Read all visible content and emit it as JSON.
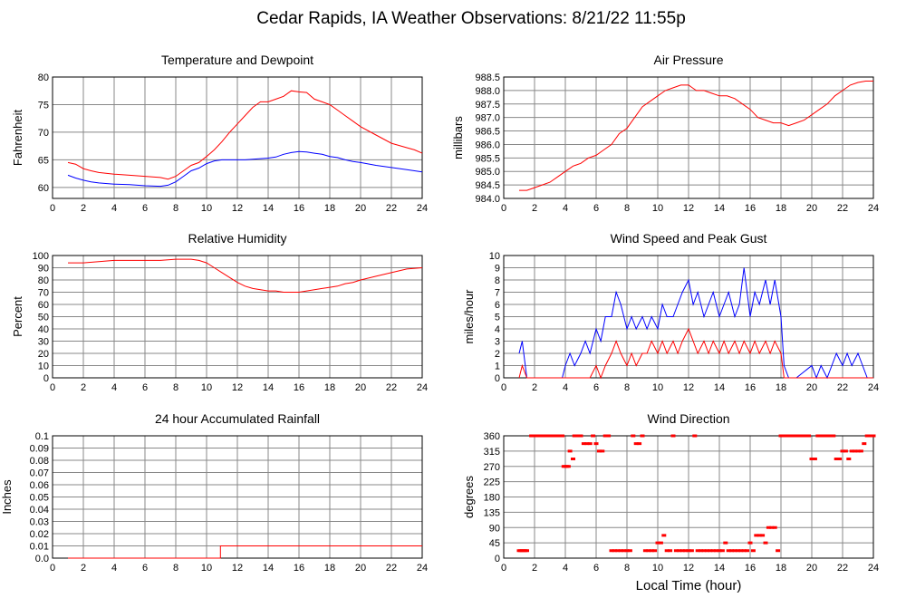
{
  "title": "Cedar Rapids, IA Weather Observations: 8/21/22 11:55p",
  "xlabel": "Local Time (hour)",
  "colors": {
    "series_red": "#ff0000",
    "series_blue": "#0000ff",
    "grid": "#888888"
  },
  "chart_data": [
    {
      "id": "temp",
      "type": "line",
      "title": "Temperature and Dewpoint",
      "ylabel": "Fahrenheit",
      "xlim": [
        0,
        24
      ],
      "ylim": [
        58,
        80
      ],
      "xticks": [
        2,
        4,
        6,
        8,
        10,
        12,
        14,
        16,
        18,
        20,
        22,
        24
      ],
      "yticks": [
        60,
        65,
        70,
        75,
        80
      ],
      "yticklabels": [
        "60",
        "65",
        "70",
        "75",
        "80"
      ],
      "grid": true,
      "series": [
        {
          "color": "#ff0000",
          "x": [
            1,
            1.5,
            2,
            2.5,
            3,
            4,
            5,
            6,
            7,
            7.5,
            8,
            8.5,
            9,
            9.5,
            10,
            10.5,
            11,
            11.5,
            12,
            12.5,
            13,
            13.5,
            14,
            14.5,
            15,
            15.5,
            16,
            16.5,
            17,
            17.5,
            18,
            18.5,
            19,
            19.5,
            20,
            21,
            22,
            23,
            23.5,
            24
          ],
          "y": [
            64.5,
            64.2,
            63.4,
            63,
            62.7,
            62.4,
            62.2,
            62,
            61.8,
            61.5,
            62,
            63,
            64,
            64.5,
            65.6,
            66.8,
            68.3,
            70,
            71.5,
            73,
            74.5,
            75.5,
            75.5,
            76,
            76.5,
            77.5,
            77.3,
            77.2,
            76,
            75.5,
            75,
            74,
            73,
            72,
            71,
            69.5,
            68,
            67.2,
            66.8,
            66.2
          ]
        },
        {
          "color": "#0000ff",
          "x": [
            1,
            1.5,
            2,
            2.5,
            3,
            4,
            5,
            6,
            7,
            7.5,
            8,
            8.5,
            9,
            9.5,
            10,
            10.5,
            11,
            11.5,
            12,
            12.5,
            13,
            13.5,
            14,
            14.5,
            15,
            15.5,
            16,
            16.5,
            17,
            17.5,
            18,
            18.5,
            19,
            19.5,
            20,
            21,
            22,
            23,
            23.5,
            24
          ],
          "y": [
            62.2,
            61.7,
            61.3,
            61,
            60.8,
            60.6,
            60.5,
            60.3,
            60.2,
            60.4,
            61,
            62,
            63,
            63.5,
            64.3,
            64.8,
            65,
            65,
            65,
            65,
            65.1,
            65.2,
            65.3,
            65.5,
            66,
            66.3,
            66.5,
            66.4,
            66.2,
            66,
            65.6,
            65.4,
            65,
            64.7,
            64.5,
            64,
            63.6,
            63.2,
            63,
            62.8
          ]
        }
      ]
    },
    {
      "id": "pressure",
      "type": "line",
      "title": "Air Pressure",
      "ylabel": "millibars",
      "xlim": [
        0,
        24
      ],
      "ylim": [
        984.0,
        988.5
      ],
      "xticks": [
        2,
        4,
        6,
        8,
        10,
        12,
        14,
        16,
        18,
        20,
        22,
        24
      ],
      "yticks": [
        984.0,
        984.5,
        985.0,
        985.5,
        986.0,
        986.5,
        987.0,
        987.5,
        988.0,
        988.5
      ],
      "yticklabels": [
        "984.0",
        "984.5",
        "985.0",
        "985.5",
        "986.0",
        "986.5",
        "987.0",
        "987.5",
        "988.0",
        "988.5"
      ],
      "grid": true,
      "series": [
        {
          "color": "#ff0000",
          "x": [
            1,
            1.5,
            2,
            2.5,
            3,
            3.5,
            4,
            4.5,
            5,
            5.5,
            6,
            6.5,
            7,
            7.5,
            8,
            8.5,
            9,
            9.5,
            10,
            10.5,
            11,
            11.5,
            12,
            12.5,
            13,
            13.5,
            14,
            14.5,
            15,
            15.5,
            16,
            16.5,
            17,
            17.5,
            18,
            18.5,
            19,
            19.5,
            20,
            20.5,
            21,
            21.5,
            22,
            22.5,
            23,
            23.5,
            24
          ],
          "y": [
            984.3,
            984.3,
            984.4,
            984.5,
            984.6,
            984.8,
            985.0,
            985.2,
            985.3,
            985.5,
            985.6,
            985.8,
            986.0,
            986.4,
            986.6,
            987.0,
            987.4,
            987.6,
            987.8,
            988.0,
            988.1,
            988.2,
            988.2,
            988.0,
            988.0,
            987.9,
            987.8,
            987.8,
            987.7,
            987.5,
            987.3,
            987.0,
            986.9,
            986.8,
            986.8,
            986.7,
            986.8,
            986.9,
            987.1,
            987.3,
            987.5,
            987.8,
            988.0,
            988.2,
            988.3,
            988.35,
            988.35
          ]
        }
      ]
    },
    {
      "id": "humidity",
      "type": "line",
      "title": "Relative Humidity",
      "ylabel": "Percent",
      "xlim": [
        0,
        24
      ],
      "ylim": [
        0,
        100
      ],
      "xticks": [
        2,
        4,
        6,
        8,
        10,
        12,
        14,
        16,
        18,
        20,
        22,
        24
      ],
      "yticks": [
        0,
        10,
        20,
        30,
        40,
        50,
        60,
        70,
        80,
        90,
        100
      ],
      "yticklabels": [
        "0",
        "10",
        "20",
        "30",
        "40",
        "50",
        "60",
        "70",
        "80",
        "90",
        "100"
      ],
      "grid": true,
      "series": [
        {
          "color": "#ff0000",
          "x": [
            1,
            2,
            3,
            4,
            5,
            6,
            7,
            8,
            9,
            9.5,
            10,
            10.5,
            11,
            11.5,
            12,
            12.5,
            13,
            13.5,
            14,
            14.5,
            15,
            15.5,
            16,
            16.5,
            17,
            17.5,
            18,
            18.5,
            19,
            19.5,
            20,
            21,
            22,
            23,
            24
          ],
          "y": [
            94,
            94,
            95,
            96,
            96,
            96,
            96,
            97,
            97,
            96,
            94,
            90,
            86,
            82,
            78,
            75,
            73,
            72,
            71,
            71,
            70,
            70,
            70,
            71,
            72,
            73,
            74,
            75,
            77,
            78,
            80,
            83,
            86,
            89,
            90
          ]
        }
      ]
    },
    {
      "id": "wind",
      "type": "line",
      "title": "Wind Speed and Peak Gust",
      "ylabel": "miles/hour",
      "xlim": [
        0,
        24
      ],
      "ylim": [
        0,
        10
      ],
      "xticks": [
        2,
        4,
        6,
        8,
        10,
        12,
        14,
        16,
        18,
        20,
        22,
        24
      ],
      "yticks": [
        0,
        1,
        2,
        3,
        4,
        5,
        6,
        7,
        8,
        9,
        10
      ],
      "yticklabels": [
        "0",
        "1",
        "2",
        "3",
        "4",
        "5",
        "6",
        "7",
        "8",
        "9",
        "10"
      ],
      "grid": true,
      "series": [
        {
          "color": "#0000ff",
          "x": [
            1,
            1.2,
            1.5,
            2,
            3,
            3.8,
            4,
            4.3,
            4.6,
            5,
            5.3,
            5.6,
            6,
            6.3,
            6.6,
            7,
            7.3,
            7.6,
            8,
            8.3,
            8.6,
            9,
            9.3,
            9.6,
            10,
            10.3,
            10.6,
            11,
            11.3,
            11.6,
            12,
            12.3,
            12.6,
            13,
            13.3,
            13.6,
            14,
            14.3,
            14.6,
            15,
            15.3,
            15.6,
            16,
            16.3,
            16.6,
            17,
            17.3,
            17.6,
            18,
            18.2,
            18.5,
            19,
            20,
            20.3,
            20.6,
            21,
            21.3,
            21.6,
            22,
            22.3,
            22.6,
            23,
            23.3,
            23.6,
            24
          ],
          "y": [
            2,
            3,
            0,
            0,
            0,
            0,
            1,
            2,
            1,
            2,
            3,
            2,
            4,
            3,
            5,
            5,
            7,
            6,
            4,
            5,
            4,
            5,
            4,
            5,
            4,
            6,
            5,
            5,
            6,
            7,
            8,
            6,
            7,
            5,
            6,
            7,
            5,
            6,
            7,
            5,
            6,
            9,
            5,
            7,
            6,
            8,
            6,
            8,
            5,
            1,
            0,
            0,
            1,
            0,
            1,
            0,
            1,
            2,
            1,
            2,
            1,
            2,
            1,
            0,
            0
          ]
        },
        {
          "color": "#ff0000",
          "x": [
            1,
            1.2,
            1.5,
            2,
            3,
            3.8,
            4,
            4.3,
            4.6,
            5,
            5.3,
            5.6,
            6,
            6.3,
            6.6,
            7,
            7.3,
            7.6,
            8,
            8.3,
            8.6,
            9,
            9.3,
            9.6,
            10,
            10.3,
            10.6,
            11,
            11.3,
            11.6,
            12,
            12.3,
            12.6,
            13,
            13.3,
            13.6,
            14,
            14.3,
            14.6,
            15,
            15.3,
            15.6,
            16,
            16.3,
            16.6,
            17,
            17.3,
            17.6,
            18,
            18.2,
            18.5,
            19,
            20,
            20.3,
            20.6,
            21,
            21.3,
            21.6,
            22,
            22.3,
            22.6,
            23,
            23.3,
            23.6,
            24
          ],
          "y": [
            0,
            1,
            0,
            0,
            0,
            0,
            0,
            0,
            0,
            0,
            0,
            0,
            1,
            0,
            1,
            2,
            3,
            2,
            1,
            2,
            1,
            2,
            2,
            3,
            2,
            3,
            2,
            3,
            2,
            3,
            4,
            3,
            2,
            3,
            2,
            3,
            2,
            3,
            2,
            3,
            2,
            3,
            2,
            3,
            2,
            3,
            2,
            3,
            2,
            0,
            0,
            0,
            0,
            0,
            0,
            0,
            0,
            0,
            0,
            0,
            0,
            0,
            0,
            0,
            0
          ]
        }
      ]
    },
    {
      "id": "rain",
      "type": "line",
      "title": "24 hour Accumulated Rainfall",
      "ylabel": "Inches",
      "xlim": [
        0,
        24
      ],
      "ylim": [
        0,
        0.1
      ],
      "xticks": [
        2,
        4,
        6,
        8,
        10,
        12,
        14,
        16,
        18,
        20,
        22,
        24
      ],
      "yticks": [
        0,
        0.01,
        0.02,
        0.03,
        0.04,
        0.05,
        0.06,
        0.07,
        0.08,
        0.09,
        0.1
      ],
      "yticklabels": [
        "0.0",
        "0.01",
        "0.02",
        "0.03",
        "0.04",
        "0.05",
        "0.06",
        "0.07",
        "0.08",
        "0.09",
        "0.1"
      ],
      "grid": true,
      "series": [
        {
          "color": "#ff0000",
          "x": [
            1,
            10.9,
            10.9,
            24
          ],
          "y": [
            0,
            0,
            0.01,
            0.01
          ]
        }
      ]
    },
    {
      "id": "winddir",
      "type": "scatter",
      "title": "Wind Direction",
      "ylabel": "degrees",
      "xlim": [
        0,
        24
      ],
      "ylim": [
        0,
        360
      ],
      "xticks": [
        2,
        4,
        6,
        8,
        10,
        12,
        14,
        16,
        18,
        20,
        22,
        24
      ],
      "yticks": [
        0,
        45,
        90,
        135,
        180,
        225,
        270,
        315,
        360
      ],
      "yticklabels": [
        "0",
        "45",
        "90",
        "135",
        "180",
        "225",
        "270",
        "315",
        "360"
      ],
      "grid": true,
      "series": [
        {
          "color": "#ff0000",
          "x": [
            1,
            1.1,
            1.2,
            1.3,
            1.4,
            1.5,
            1.8,
            2,
            2.2,
            2.4,
            2.6,
            2.8,
            3,
            3.2,
            3.4,
            3.6,
            3.8,
            3.9,
            4,
            4.1,
            4.2,
            4.3,
            4.5,
            4.6,
            4.8,
            5,
            5.2,
            5.4,
            5.6,
            5.8,
            6,
            6.2,
            6.4,
            6.6,
            6.8,
            7,
            7.2,
            7.4,
            7.6,
            7.8,
            8,
            8.2,
            8.4,
            8.6,
            8.8,
            9,
            9.2,
            9.4,
            9.6,
            9.8,
            10,
            10.2,
            10.4,
            10.6,
            10.8,
            11,
            11.2,
            11.4,
            11.6,
            11.8,
            12,
            12.2,
            12.4,
            12.6,
            12.8,
            13,
            13.2,
            13.4,
            13.6,
            13.8,
            14,
            14.2,
            14.4,
            14.6,
            14.8,
            15,
            15.2,
            15.4,
            15.6,
            15.8,
            16,
            16.2,
            16.4,
            16.6,
            16.8,
            17,
            17.2,
            17.4,
            17.6,
            17.8,
            18,
            18.2,
            18.4,
            18.6,
            18.8,
            19,
            19.2,
            19.4,
            19.6,
            19.8,
            20,
            20.2,
            20.4,
            20.6,
            20.8,
            21,
            21.2,
            21.4,
            21.6,
            21.8,
            22,
            22.2,
            22.4,
            22.6,
            22.8,
            23,
            23.2,
            23.4,
            23.6,
            23.8,
            24
          ],
          "y": [
            22,
            22,
            22,
            22,
            22,
            22,
            360,
            360,
            360,
            360,
            360,
            360,
            360,
            360,
            360,
            360,
            360,
            270,
            270,
            270,
            270,
            315,
            292,
            360,
            360,
            360,
            337,
            337,
            337,
            360,
            337,
            315,
            315,
            360,
            360,
            22,
            22,
            22,
            22,
            22,
            22,
            22,
            360,
            337,
            337,
            360,
            22,
            22,
            22,
            22,
            45,
            45,
            67,
            22,
            22,
            360,
            22,
            22,
            22,
            22,
            22,
            22,
            360,
            22,
            22,
            22,
            22,
            22,
            22,
            22,
            22,
            22,
            45,
            22,
            22,
            22,
            22,
            22,
            22,
            22,
            45,
            22,
            67,
            67,
            67,
            45,
            90,
            90,
            90,
            22,
            360,
            360,
            360,
            360,
            360,
            360,
            360,
            360,
            360,
            360,
            292,
            292,
            360,
            360,
            360,
            360,
            360,
            360,
            292,
            292,
            315,
            315,
            292,
            315,
            315,
            315,
            315,
            337,
            360,
            360,
            360
          ]
        }
      ]
    }
  ]
}
